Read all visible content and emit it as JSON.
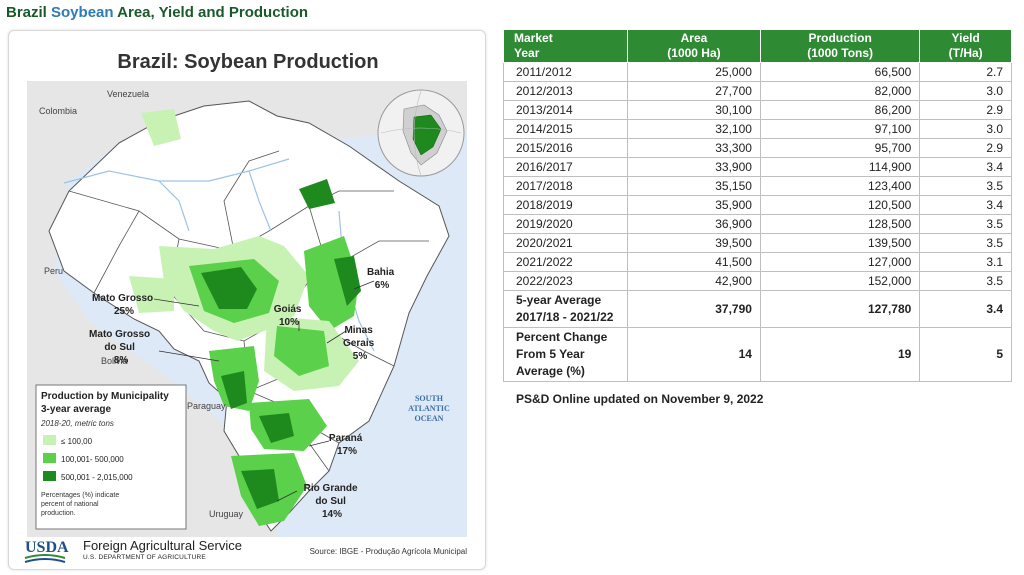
{
  "page_title": {
    "part1": "Brazil ",
    "part2": "Soybean",
    "part3": " Area, Yield and Production"
  },
  "map": {
    "title": "Brazil: Soybean Production",
    "countries": {
      "venezuela": "Venezuela",
      "colombia": "Colombia",
      "peru": "Peru",
      "bolivia": "Bolivia",
      "paraguay": "Paraguay",
      "uruguay": "Uruguay"
    },
    "ocean": [
      "SOUTH",
      "ATLANTIC",
      "OCEAN"
    ],
    "states": [
      {
        "id": "mato-grosso",
        "lines": [
          "Mato Grosso",
          "25%"
        ]
      },
      {
        "id": "mato-grosso-do-sul",
        "lines": [
          "Mato Grosso",
          "do Sul",
          "8%"
        ]
      },
      {
        "id": "goias",
        "lines": [
          "Goiás",
          "10%"
        ]
      },
      {
        "id": "bahia",
        "lines": [
          "Bahia",
          "6%"
        ]
      },
      {
        "id": "minas-gerais",
        "lines": [
          "Minas",
          "Gerais",
          "5%"
        ]
      },
      {
        "id": "parana",
        "lines": [
          "Paraná",
          "17%"
        ]
      },
      {
        "id": "rio-grande-do-sul",
        "lines": [
          "Rio Grande",
          "do Sul",
          "14%"
        ]
      }
    ],
    "legend": {
      "title_line1": "Production by Municipality",
      "title_line2": "3-year average",
      "subtitle": "2018-20, metric tons",
      "items": [
        {
          "label": "≤ 100,00",
          "color": "#c8f2b4"
        },
        {
          "label": "100,001- 500,000",
          "color": "#5bd04a"
        },
        {
          "label": "500,001 - 2,015,000",
          "color": "#1e8a1e"
        }
      ],
      "note_lines": [
        "Percentages (%) indicate",
        "percent of national",
        "production."
      ]
    },
    "colors": {
      "ocean": "#dde9f7",
      "brazil_land": "#ffffff",
      "neighbor_land": "#e6e6e6",
      "light": "#c8f2b4",
      "medium": "#5bd04a",
      "dark": "#1e8a1e",
      "river": "#9cc3e6"
    },
    "footer": {
      "usda": "USDA",
      "agency": "Foreign Agricultural Service",
      "department": "U.S. DEPARTMENT OF AGRICULTURE",
      "source": "Source: IBGE - Produção Agrícola Municipal"
    }
  },
  "table": {
    "headers": [
      {
        "line1": "Market",
        "line2": "Year"
      },
      {
        "line1": "Area",
        "line2": "(1000 Ha)"
      },
      {
        "line1": "Production",
        "line2": "(1000 Tons)"
      },
      {
        "line1": "Yield",
        "line2": "(T/Ha)"
      }
    ],
    "rows": [
      {
        "year": "2011/2012",
        "area": "25,000",
        "production": "66,500",
        "yield": "2.7"
      },
      {
        "year": "2012/2013",
        "area": "27,700",
        "production": "82,000",
        "yield": "3.0"
      },
      {
        "year": "2013/2014",
        "area": "30,100",
        "production": "86,200",
        "yield": "2.9"
      },
      {
        "year": "2014/2015",
        "area": "32,100",
        "production": "97,100",
        "yield": "3.0"
      },
      {
        "year": "2015/2016",
        "area": "33,300",
        "production": "95,700",
        "yield": "2.9"
      },
      {
        "year": "2016/2017",
        "area": "33,900",
        "production": "114,900",
        "yield": "3.4"
      },
      {
        "year": "2017/2018",
        "area": "35,150",
        "production": "123,400",
        "yield": "3.5"
      },
      {
        "year": "2018/2019",
        "area": "35,900",
        "production": "120,500",
        "yield": "3.4"
      },
      {
        "year": "2019/2020",
        "area": "36,900",
        "production": "128,500",
        "yield": "3.5"
      },
      {
        "year": "2020/2021",
        "area": "39,500",
        "production": "139,500",
        "yield": "3.5"
      },
      {
        "year": "2021/2022",
        "area": "41,500",
        "production": "127,000",
        "yield": "3.1"
      },
      {
        "year": "2022/2023",
        "area": "42,900",
        "production": "152,000",
        "yield": "3.5"
      }
    ],
    "five_year": {
      "line1": "5-year Average",
      "line2": "2017/18 - 2021/22",
      "area": "37,790",
      "production": "127,780",
      "yield": "3.4"
    },
    "pct_change": {
      "line1": "Percent Change",
      "line2": "From 5 Year",
      "line3": "Average (%)",
      "area": "14",
      "production": "19",
      "yield": "5"
    },
    "header_color": "#2f8a34"
  },
  "updated_note": "PS&D Online updated on November 9, 2022"
}
